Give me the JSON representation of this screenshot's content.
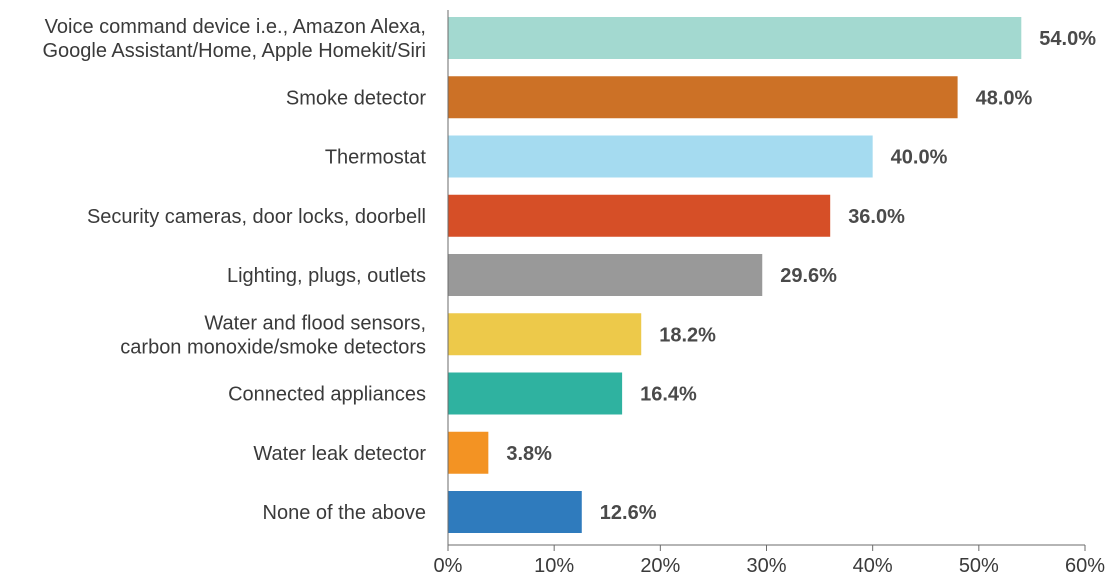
{
  "chart_data": {
    "type": "bar",
    "orientation": "horizontal",
    "title": "",
    "xlabel": "",
    "ylabel": "",
    "categories": [
      [
        "Voice command device i.e., Amazon Alexa,",
        "Google Assistant/Home, Apple Homekit/Siri"
      ],
      [
        "Smoke detector"
      ],
      [
        "Thermostat"
      ],
      [
        "Security cameras, door locks, doorbell"
      ],
      [
        "Lighting, plugs, outlets"
      ],
      [
        "Water and flood sensors,",
        "carbon monoxide/smoke detectors"
      ],
      [
        "Connected appliances"
      ],
      [
        "Water leak detector"
      ],
      [
        "None of the above"
      ]
    ],
    "values": [
      54.0,
      48.0,
      40.0,
      36.0,
      29.6,
      18.2,
      16.4,
      3.8,
      12.6
    ],
    "value_labels": [
      "54.0%",
      "48.0%",
      "40.0%",
      "36.0%",
      "29.6%",
      "18.2%",
      "16.4%",
      "3.8%",
      "12.6%"
    ],
    "colors": [
      "#a3d9d0",
      "#cc7126",
      "#a5dbf0",
      "#d64f27",
      "#999999",
      "#edc94a",
      "#2fb2a0",
      "#f39323",
      "#2f7bbd"
    ],
    "xlim": [
      0,
      60
    ],
    "xticks": [
      0,
      10,
      20,
      30,
      40,
      50,
      60
    ],
    "xtick_labels": [
      "0%",
      "10%",
      "20%",
      "30%",
      "40%",
      "50%",
      "60%"
    ],
    "grid": false,
    "legend": "none"
  }
}
